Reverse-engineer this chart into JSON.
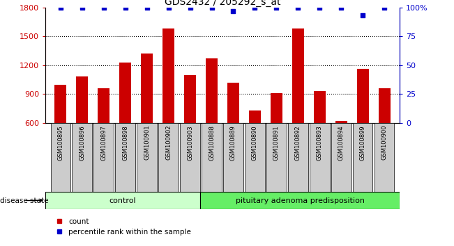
{
  "title": "GDS2432 / 205292_s_at",
  "samples": [
    "GSM100895",
    "GSM100896",
    "GSM100897",
    "GSM100898",
    "GSM100901",
    "GSM100902",
    "GSM100903",
    "GSM100888",
    "GSM100889",
    "GSM100890",
    "GSM100891",
    "GSM100892",
    "GSM100893",
    "GSM100894",
    "GSM100899",
    "GSM100900"
  ],
  "counts": [
    1000,
    1080,
    960,
    1230,
    1320,
    1580,
    1100,
    1270,
    1020,
    730,
    910,
    1580,
    930,
    620,
    1160,
    960
  ],
  "percentiles": [
    100,
    100,
    100,
    100,
    100,
    100,
    100,
    100,
    97,
    100,
    100,
    100,
    100,
    100,
    93,
    100
  ],
  "bar_color": "#cc0000",
  "dot_color": "#0000cc",
  "ylim_left": [
    600,
    1800
  ],
  "ylim_right": [
    0,
    100
  ],
  "yticks_left": [
    600,
    900,
    1200,
    1500,
    1800
  ],
  "yticks_right": [
    0,
    25,
    50,
    75,
    100
  ],
  "ytick_labels_right": [
    "0",
    "25",
    "50",
    "75",
    "100%"
  ],
  "grid_values": [
    900,
    1200,
    1500
  ],
  "control_count": 7,
  "pituitary_count": 9,
  "control_label": "control",
  "pituitary_label": "pituitary adenoma predisposition",
  "disease_label": "disease state",
  "legend_count_label": "count",
  "legend_percentile_label": "percentile rank within the sample",
  "control_color": "#ccffcc",
  "pituitary_color": "#66ee66",
  "xticklabel_bg": "#cccccc",
  "bar_width": 0.55,
  "fig_width": 6.51,
  "fig_height": 3.54,
  "dpi": 100
}
